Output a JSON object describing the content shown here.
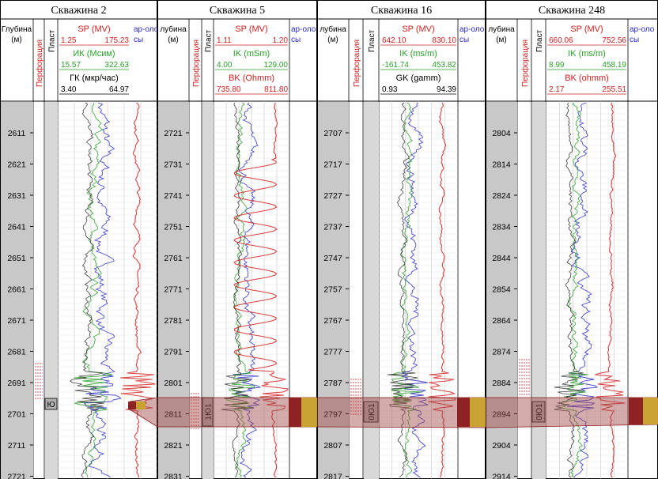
{
  "wells": [
    {
      "title": "Скважина 2",
      "col_depth": "Глубина",
      "col_depth_unit": "(м)",
      "col_perf": "Перфорация",
      "col_layer": "Пласт",
      "col_extra": "ар-оло",
      "col_extra2": "сы",
      "c1": {
        "name": "SP  (MV)",
        "min": "1.25",
        "max": "175.23"
      },
      "c2": {
        "name": "ИК  (Мсим)",
        "min": "15.57",
        "max": "322.63"
      },
      "c3": {
        "name": "ГК  (мкр/час)",
        "min": "3.40",
        "max": "64.97"
      },
      "depth_ticks": [
        "2611",
        "2621",
        "2631",
        "2641",
        "2651",
        "2661",
        "2671",
        "2681",
        "2691",
        "2701",
        "2711",
        "2721"
      ],
      "layer_label": "Ю"
    },
    {
      "title": "Скважина 5",
      "col_depth": "лубина",
      "col_depth_unit": "(м)",
      "col_perf": "Перфорация",
      "col_layer": "Пласт",
      "col_extra": "ар-оло",
      "col_extra2": "сы",
      "c1": {
        "name": "SP  (MV)",
        "min": "1.11",
        "max": "1.20"
      },
      "c2": {
        "name": "IK  (mSm)",
        "min": "4.00",
        "max": "129.00"
      },
      "c3": {
        "name": "BK  (Ohmm)",
        "min": "735.80",
        "max": "811.80"
      },
      "depth_ticks": [
        "2721",
        "2731",
        "2741",
        "2751",
        "2761",
        "2771",
        "2781",
        "2791",
        "2801",
        "2811",
        "2821",
        "2831"
      ],
      "layer_label": "1Ю1"
    },
    {
      "title": "Скважина 16",
      "col_depth": "лубина",
      "col_depth_unit": "(м)",
      "col_perf": "Перфорация",
      "col_layer": "Пласт",
      "col_extra": "ар-оло",
      "col_extra2": "сы",
      "c1": {
        "name": "SP  (MV)",
        "min": "642.10",
        "max": "830.10"
      },
      "c2": {
        "name": "IK  (ms/m)",
        "min": "-161.74",
        "max": "453.82"
      },
      "c3": {
        "name": "GK  (gamm)",
        "min": "0.93",
        "max": "94.39"
      },
      "depth_ticks": [
        "2707",
        "2717",
        "2727",
        "2737",
        "2747",
        "2757",
        "2767",
        "2777",
        "2787",
        "2797",
        "2807",
        "2817"
      ],
      "layer_label": "0Ю1"
    },
    {
      "title": "Скважина 248",
      "col_depth": "лубина",
      "col_depth_unit": "(м)",
      "col_perf": "Перфорация",
      "col_layer": "Пласт",
      "col_extra": "ар-оло",
      "col_extra2": "сы",
      "c1": {
        "name": "SP  (MV)",
        "min": "660.06",
        "max": "752.56"
      },
      "c2": {
        "name": "IK  (ms/m)",
        "min": "8.99",
        "max": "458.19"
      },
      "c3": {
        "name": "BK  (ohmm)",
        "min": "2.17",
        "max": "255.51"
      },
      "depth_ticks": [
        "2804",
        "2814",
        "2824",
        "2834",
        "2844",
        "2854",
        "2864",
        "2874",
        "2884",
        "2894",
        "2904",
        "2914"
      ],
      "layer_label": "0Ю1"
    }
  ],
  "colors": {
    "sp": "#d42020",
    "ik": "#2aa02a",
    "gk": "#222222",
    "extra": "#2b2bc8",
    "band": "#9a2a2a",
    "depth_bg": "#c8c8c8",
    "grid": "#c8c8c8",
    "corr_fill": "#a04646",
    "corr_dark": "#8b1a1a",
    "corr_yellow": "#c9a22e"
  }
}
